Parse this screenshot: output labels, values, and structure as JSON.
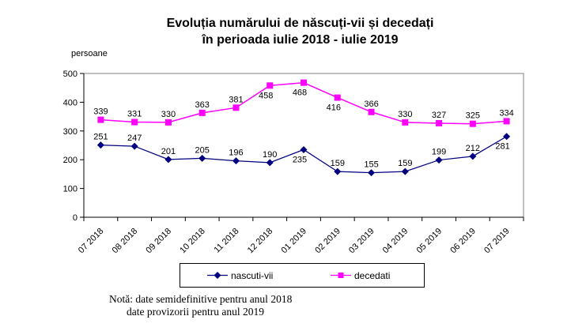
{
  "title": {
    "line1": "Evoluția numărului de născuți-vii și decedați",
    "line2": "în perioada iulie 2018 - iulie 2019"
  },
  "y_axis_unit": "persoane",
  "note": {
    "line1": "Notă: date semidefinitive pentru anul 2018",
    "line2": "date provizorii pentru anul 2019"
  },
  "colors": {
    "nascuti_vii": "#000080",
    "decedati": "#FF00FF",
    "plot_border": "#808080",
    "axis": "#000000",
    "text": "#000000"
  },
  "legend": {
    "entry1_label": "nascuti-vii",
    "entry2_label": "decedati"
  },
  "chart_data": {
    "type": "line",
    "title": "Evoluția numărului de născuți-vii și decedați în perioada iulie 2018 - iulie 2019",
    "xlabel": "",
    "ylabel": "persoane",
    "ylim": [
      0,
      500
    ],
    "ytick_step": 100,
    "grid": false,
    "legend_position": "bottom",
    "categories": [
      "07 2018",
      "08 2018",
      "09 2018",
      "10 2018",
      "11 2018",
      "12 2018",
      "01 2019",
      "02 2019",
      "03 2019",
      "04 2019",
      "05 2019",
      "06 2019",
      "07 2019"
    ],
    "series": [
      {
        "name": "nascuti-vii",
        "color": "#000080",
        "marker": "diamond",
        "values": [
          251,
          247,
          201,
          205,
          196,
          190,
          235,
          159,
          155,
          159,
          199,
          212,
          281
        ],
        "label_below_indices": [
          6,
          12
        ]
      },
      {
        "name": "decedati",
        "color": "#FF00FF",
        "marker": "square",
        "values": [
          339,
          331,
          330,
          363,
          381,
          458,
          468,
          416,
          366,
          330,
          327,
          325,
          334
        ],
        "label_below_indices": [
          5,
          6,
          7
        ]
      }
    ]
  }
}
